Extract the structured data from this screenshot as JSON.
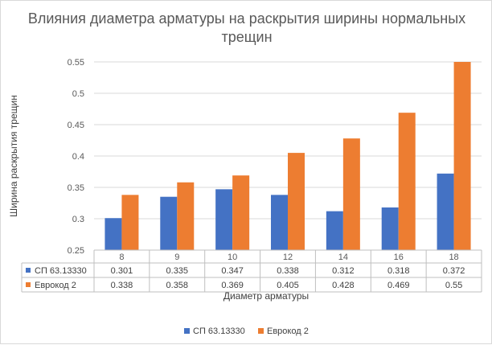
{
  "chart_data": {
    "type": "bar",
    "title_lines": [
      "Влияния диаметра арматуры на раскрытия ширины нормальных",
      "трещин"
    ],
    "xlabel": "Диаметр арматуры",
    "ylabel": "Ширина раскрытия трещин",
    "categories": [
      "8",
      "9",
      "10",
      "12",
      "14",
      "16",
      "18"
    ],
    "series": [
      {
        "name": "СП 63.13330",
        "color": "#4472C4",
        "values": [
          0.301,
          0.335,
          0.347,
          0.338,
          0.312,
          0.318,
          0.372
        ]
      },
      {
        "name": "Еврокод 2",
        "color": "#ED7D31",
        "values": [
          0.338,
          0.358,
          0.369,
          0.405,
          0.428,
          0.469,
          0.55
        ]
      }
    ],
    "table_values": [
      [
        "0.301",
        "0.335",
        "0.347",
        "0.338",
        "0.312",
        "0.318",
        "0.372"
      ],
      [
        "0.338",
        "0.358",
        "0.369",
        "0.405",
        "0.428",
        "0.469",
        "0.55"
      ]
    ],
    "y_ticks": [
      "0.25",
      "0.3",
      "0.35",
      "0.4",
      "0.45",
      "0.5",
      "0.55"
    ],
    "ylim": [
      0.25,
      0.55
    ],
    "grid": true,
    "data_table": true,
    "legend_position": "bottom"
  }
}
